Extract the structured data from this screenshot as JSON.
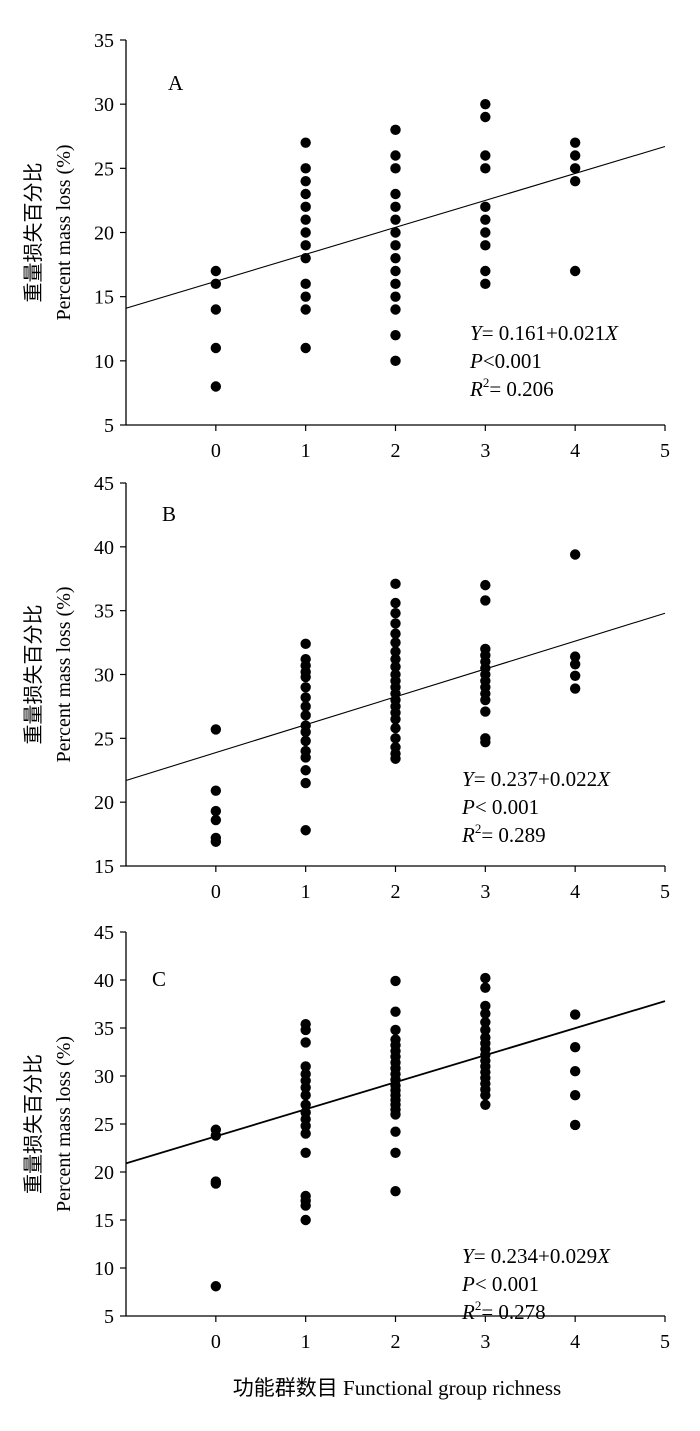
{
  "chart_data": [
    {
      "type": "scatter",
      "panel_label": "A",
      "ylabel_cn": "重量损失百分比",
      "ylabel_en": "Percent mass loss (%)",
      "xlim": [
        -1,
        5
      ],
      "ylim": [
        5,
        35
      ],
      "xticks": [
        "0",
        "1",
        "2",
        "3",
        "4",
        "5"
      ],
      "yticks": [
        "5",
        "10",
        "15",
        "20",
        "25",
        "30",
        "35"
      ],
      "points": [
        [
          0,
          17
        ],
        [
          0,
          16
        ],
        [
          0,
          14
        ],
        [
          0,
          11
        ],
        [
          0,
          8
        ],
        [
          1,
          27
        ],
        [
          1,
          25
        ],
        [
          1,
          24
        ],
        [
          1,
          23
        ],
        [
          1,
          22
        ],
        [
          1,
          21
        ],
        [
          1,
          20
        ],
        [
          1,
          19
        ],
        [
          1,
          18
        ],
        [
          1,
          16
        ],
        [
          1,
          15
        ],
        [
          1,
          14
        ],
        [
          1,
          11
        ],
        [
          2,
          28
        ],
        [
          2,
          26
        ],
        [
          2,
          25
        ],
        [
          2,
          23
        ],
        [
          2,
          22
        ],
        [
          2,
          21
        ],
        [
          2,
          20
        ],
        [
          2,
          19
        ],
        [
          2,
          18
        ],
        [
          2,
          17
        ],
        [
          2,
          16
        ],
        [
          2,
          15
        ],
        [
          2,
          14
        ],
        [
          2,
          12
        ],
        [
          2,
          10
        ],
        [
          3,
          30
        ],
        [
          3,
          29
        ],
        [
          3,
          26
        ],
        [
          3,
          25
        ],
        [
          3,
          22
        ],
        [
          3,
          21
        ],
        [
          3,
          20
        ],
        [
          3,
          19
        ],
        [
          3,
          17
        ],
        [
          3,
          16
        ],
        [
          4,
          27
        ],
        [
          4,
          26
        ],
        [
          4,
          25
        ],
        [
          4,
          24
        ],
        [
          4,
          17
        ]
      ],
      "fit_line": [
        [
          -1,
          14.1
        ],
        [
          5,
          26.7
        ]
      ],
      "stats": {
        "eq_y": "Y",
        "eq_mid": "= 0.161+0.021",
        "eq_x": "X",
        "p_label": "P",
        "p_rest": "<0.001",
        "r_label": "R",
        "r_sup": "2",
        "r_rest": "= 0.206"
      },
      "grid": false,
      "legend": "none"
    },
    {
      "type": "scatter",
      "panel_label": "B",
      "ylabel_cn": "重量损失百分比",
      "ylabel_en": "Percent mass loss (%)",
      "xlim": [
        -1,
        5
      ],
      "ylim": [
        15,
        45
      ],
      "xticks": [
        "0",
        "1",
        "2",
        "3",
        "4",
        "5"
      ],
      "yticks": [
        "15",
        "20",
        "25",
        "30",
        "35",
        "40",
        "45"
      ],
      "points": [
        [
          0,
          25.7
        ],
        [
          0,
          20.9
        ],
        [
          0,
          19.3
        ],
        [
          0,
          18.6
        ],
        [
          0,
          17.2
        ],
        [
          0,
          16.9
        ],
        [
          1,
          32.4
        ],
        [
          1,
          31.2
        ],
        [
          1,
          30.7
        ],
        [
          1,
          30.2
        ],
        [
          1,
          29.8
        ],
        [
          1,
          29.0
        ],
        [
          1,
          28.2
        ],
        [
          1,
          27.5
        ],
        [
          1,
          26.8
        ],
        [
          1,
          26.0
        ],
        [
          1,
          25.5
        ],
        [
          1,
          24.8
        ],
        [
          1,
          24.0
        ],
        [
          1,
          23.5
        ],
        [
          1,
          22.5
        ],
        [
          1,
          21.5
        ],
        [
          1,
          17.8
        ],
        [
          2,
          37.1
        ],
        [
          2,
          35.6
        ],
        [
          2,
          34.8
        ],
        [
          2,
          34.0
        ],
        [
          2,
          33.2
        ],
        [
          2,
          32.5
        ],
        [
          2,
          31.8
        ],
        [
          2,
          31.2
        ],
        [
          2,
          30.6
        ],
        [
          2,
          30.0
        ],
        [
          2,
          29.5
        ],
        [
          2,
          29.0
        ],
        [
          2,
          28.5
        ],
        [
          2,
          28.0
        ],
        [
          2,
          27.5
        ],
        [
          2,
          27.0
        ],
        [
          2,
          26.5
        ],
        [
          2,
          25.8
        ],
        [
          2,
          25.0
        ],
        [
          2,
          24.3
        ],
        [
          2,
          23.8
        ],
        [
          2,
          23.4
        ],
        [
          3,
          37.0
        ],
        [
          3,
          35.8
        ],
        [
          3,
          32.0
        ],
        [
          3,
          31.5
        ],
        [
          3,
          31.0
        ],
        [
          3,
          30.5
        ],
        [
          3,
          30.0
        ],
        [
          3,
          29.5
        ],
        [
          3,
          29.0
        ],
        [
          3,
          28.5
        ],
        [
          3,
          28.0
        ],
        [
          3,
          27.1
        ],
        [
          3,
          25.0
        ],
        [
          3,
          24.7
        ],
        [
          4,
          39.4
        ],
        [
          4,
          31.4
        ],
        [
          4,
          30.8
        ],
        [
          4,
          29.9
        ],
        [
          4,
          28.9
        ]
      ],
      "fit_line": [
        [
          -1,
          21.7
        ],
        [
          5,
          34.8
        ]
      ],
      "stats": {
        "eq_y": "Y",
        "eq_mid": "= 0.237+0.022",
        "eq_x": "X",
        "p_label": "P",
        "p_rest": "< 0.001",
        "r_label": "R",
        "r_sup": "2",
        "r_rest": "= 0.289"
      },
      "grid": false,
      "legend": "none"
    },
    {
      "type": "scatter",
      "panel_label": "C",
      "ylabel_cn": "重量损失百分比",
      "ylabel_en": "Percent mass loss (%)",
      "xlim": [
        -1,
        5
      ],
      "ylim": [
        5,
        45
      ],
      "xticks": [
        "0",
        "1",
        "2",
        "3",
        "4",
        "5"
      ],
      "yticks": [
        "5",
        "10",
        "15",
        "20",
        "25",
        "30",
        "35",
        "40",
        "45"
      ],
      "points": [
        [
          0,
          24.4
        ],
        [
          0,
          23.8
        ],
        [
          0,
          19.0
        ],
        [
          0,
          18.8
        ],
        [
          0,
          8.1
        ],
        [
          1,
          35.4
        ],
        [
          1,
          34.8
        ],
        [
          1,
          33.5
        ],
        [
          1,
          31.0
        ],
        [
          1,
          30.2
        ],
        [
          1,
          29.5
        ],
        [
          1,
          28.8
        ],
        [
          1,
          28.0
        ],
        [
          1,
          27.0
        ],
        [
          1,
          26.2
        ],
        [
          1,
          25.5
        ],
        [
          1,
          24.8
        ],
        [
          1,
          24.0
        ],
        [
          1,
          22.0
        ],
        [
          1,
          17.5
        ],
        [
          1,
          17.0
        ],
        [
          1,
          16.5
        ],
        [
          1,
          15.0
        ],
        [
          2,
          39.9
        ],
        [
          2,
          36.7
        ],
        [
          2,
          34.8
        ],
        [
          2,
          33.8
        ],
        [
          2,
          33.2
        ],
        [
          2,
          32.6
        ],
        [
          2,
          32.0
        ],
        [
          2,
          31.4
        ],
        [
          2,
          30.8
        ],
        [
          2,
          30.2
        ],
        [
          2,
          29.6
        ],
        [
          2,
          29.0
        ],
        [
          2,
          28.5
        ],
        [
          2,
          28.0
        ],
        [
          2,
          27.5
        ],
        [
          2,
          27.0
        ],
        [
          2,
          26.5
        ],
        [
          2,
          26.0
        ],
        [
          2,
          24.2
        ],
        [
          2,
          22.0
        ],
        [
          2,
          18.0
        ],
        [
          3,
          40.2
        ],
        [
          3,
          39.2
        ],
        [
          3,
          37.3
        ],
        [
          3,
          36.5
        ],
        [
          3,
          35.6
        ],
        [
          3,
          34.8
        ],
        [
          3,
          34.0
        ],
        [
          3,
          33.4
        ],
        [
          3,
          32.8
        ],
        [
          3,
          32.2
        ],
        [
          3,
          31.6
        ],
        [
          3,
          31.0
        ],
        [
          3,
          30.4
        ],
        [
          3,
          29.8
        ],
        [
          3,
          29.2
        ],
        [
          3,
          28.6
        ],
        [
          3,
          28.0
        ],
        [
          3,
          27.0
        ],
        [
          4,
          36.4
        ],
        [
          4,
          33.0
        ],
        [
          4,
          30.5
        ],
        [
          4,
          28.0
        ],
        [
          4,
          24.9
        ]
      ],
      "fit_line": [
        [
          -1,
          20.9
        ],
        [
          5,
          37.8
        ]
      ],
      "stats": {
        "eq_y": "Y",
        "eq_mid": "= 0.234+0.029",
        "eq_x": "X",
        "p_label": "P",
        "p_rest": "< 0.001",
        "r_label": "R",
        "r_sup": "2",
        "r_rest": "= 0.278"
      },
      "grid": false,
      "legend": "none"
    }
  ],
  "xlabel": "功能群数目  Functional group richness"
}
